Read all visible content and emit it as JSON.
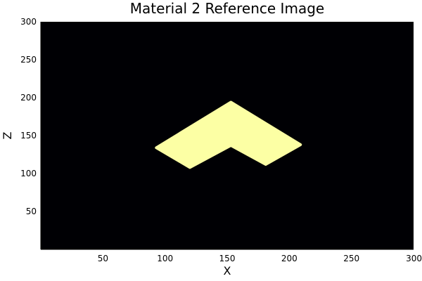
{
  "chart_data": {
    "type": "heatmap",
    "title": "Material 2 Reference Image",
    "xlabel": "X",
    "ylabel": "Z",
    "xlim": [
      0,
      300
    ],
    "ylim": [
      0,
      300
    ],
    "xticks": [
      50,
      100,
      150,
      200,
      250,
      300
    ],
    "yticks": [
      50,
      100,
      150,
      200,
      250,
      300
    ],
    "grid": false,
    "background_color": "#000004",
    "region_color": "#fcffa4",
    "region": {
      "shape": "chevron",
      "points": [
        [
          153,
          194
        ],
        [
          209,
          138
        ],
        [
          181,
          112
        ],
        [
          153,
          137
        ],
        [
          120,
          108
        ],
        [
          93,
          134
        ]
      ]
    }
  }
}
